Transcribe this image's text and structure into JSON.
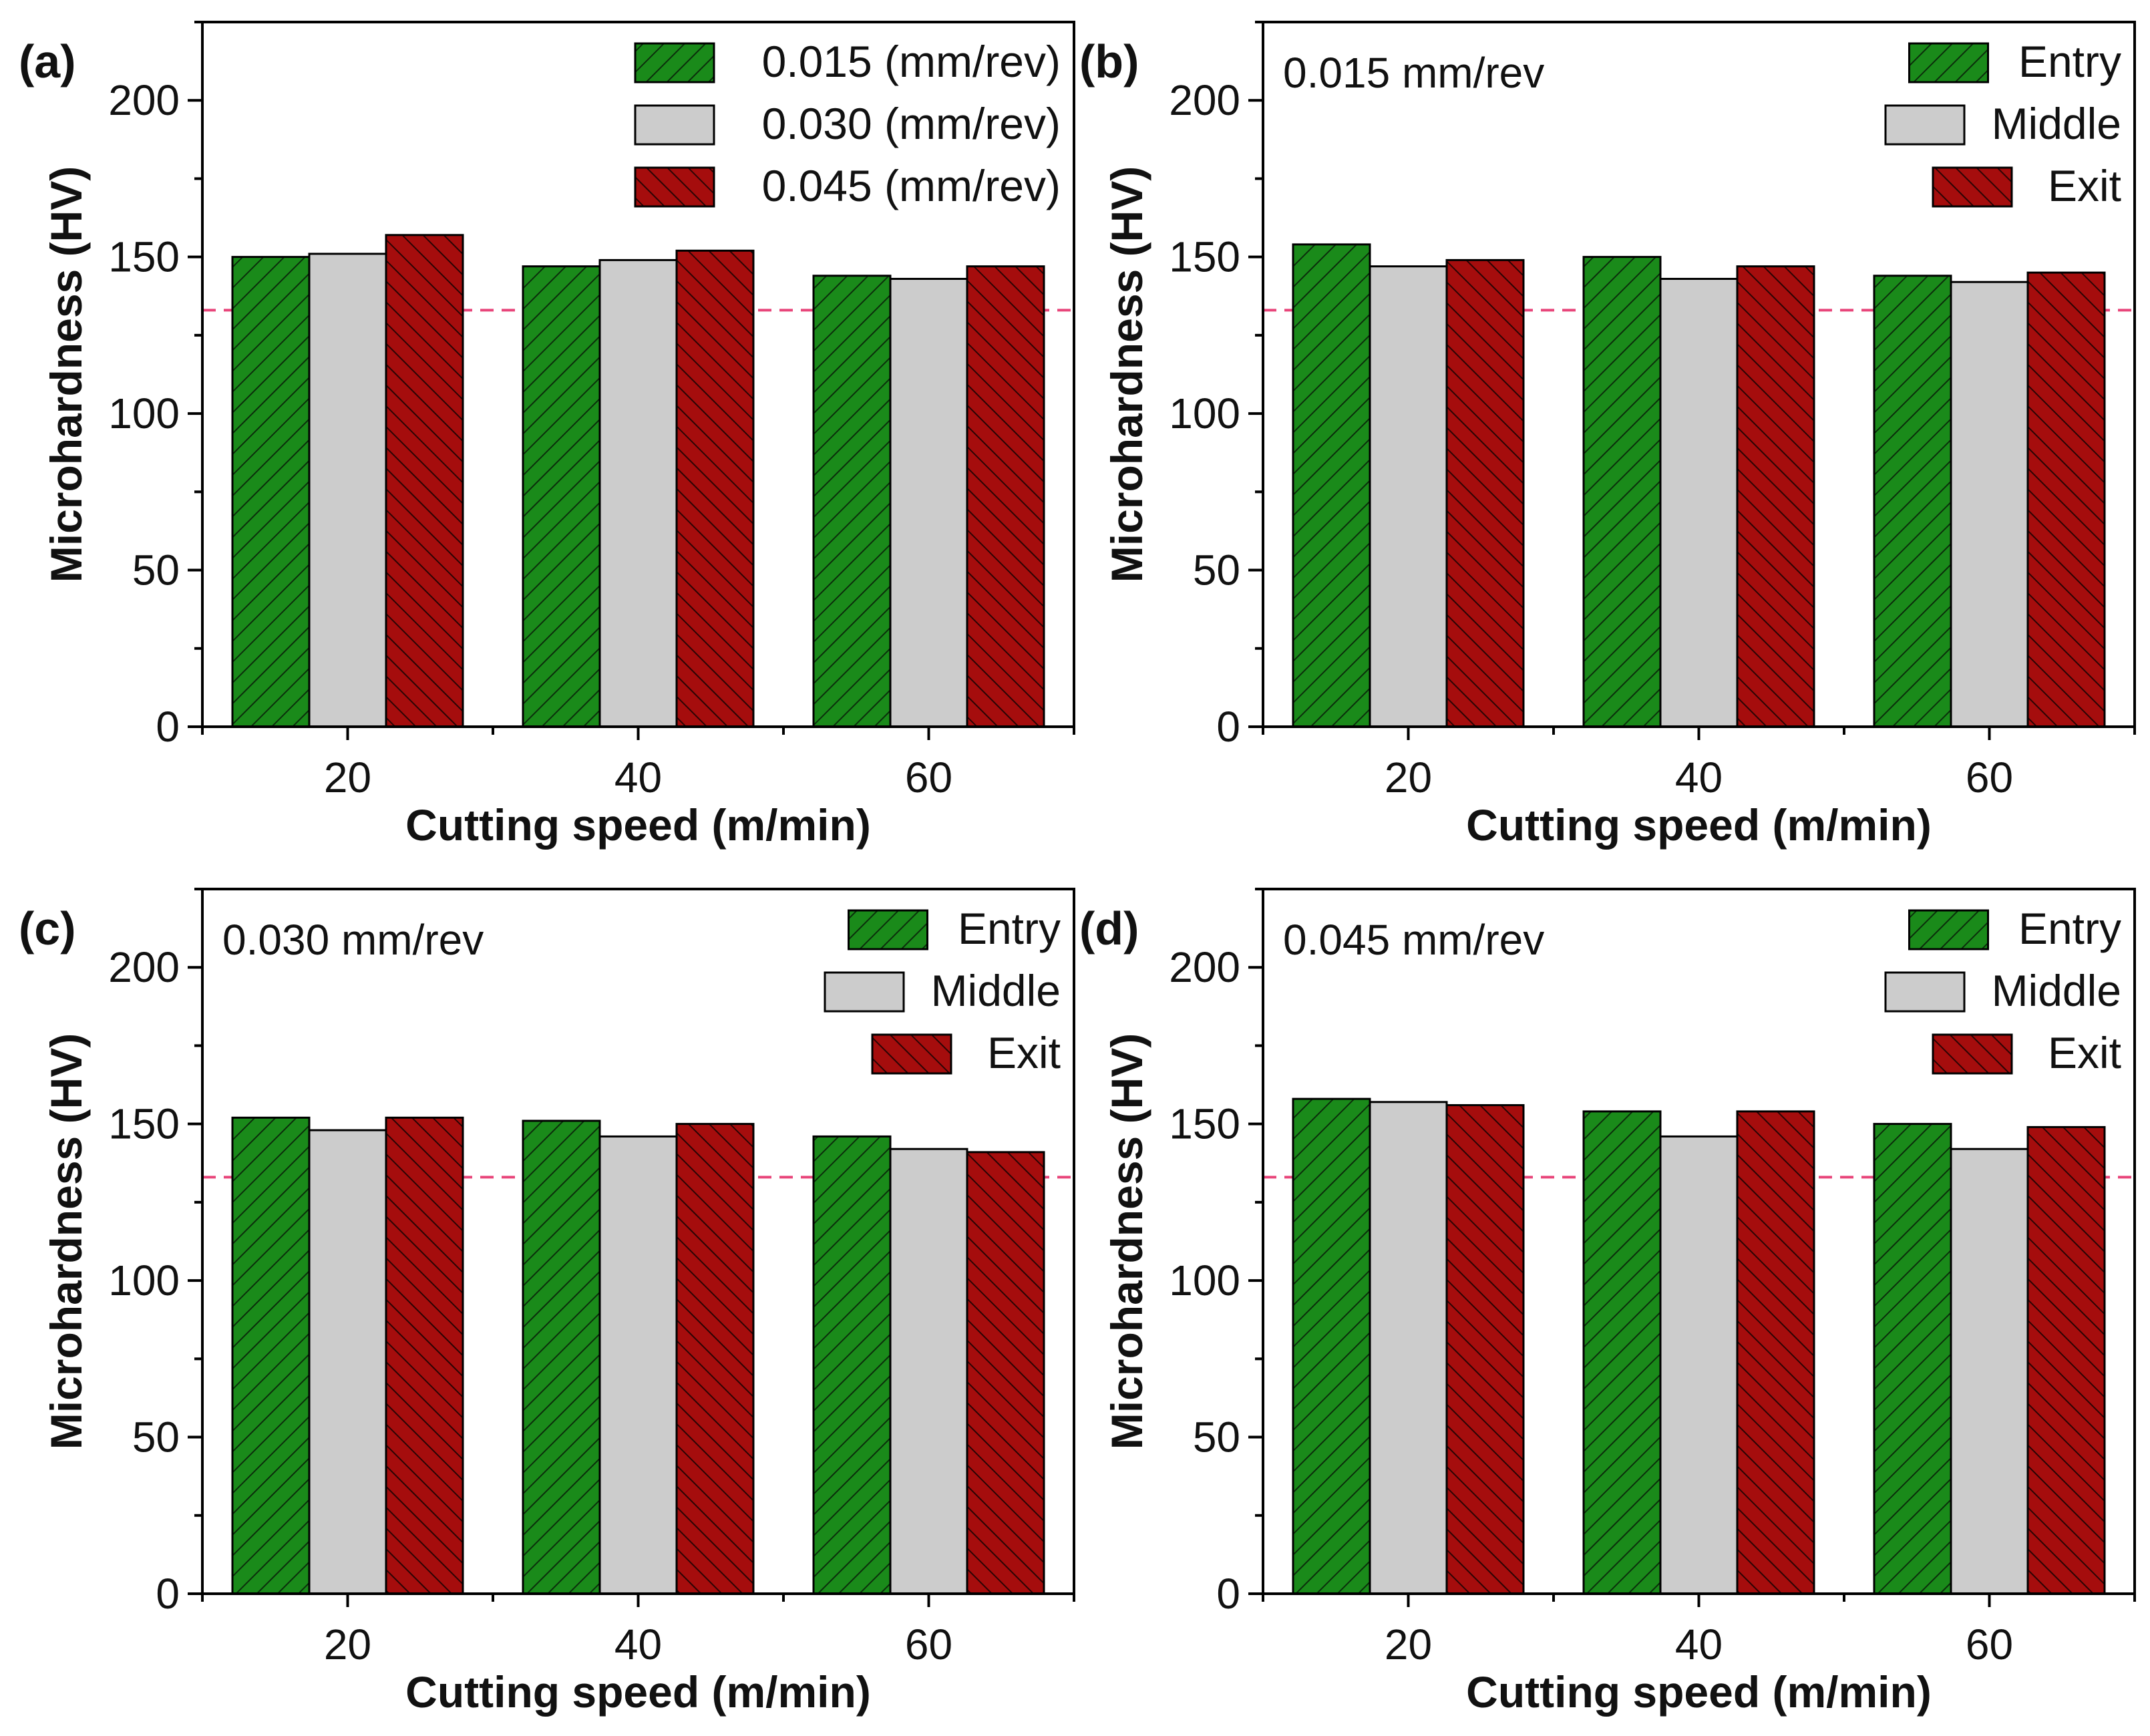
{
  "figure": {
    "colors": {
      "entry_green": "#1a8a1a",
      "middle_gray": "#cccccc",
      "exit_red": "#a50d0d",
      "reference_line": "#e8457a",
      "axis": "#000000"
    },
    "reference_value": 133
  },
  "chart_data": [
    {
      "type": "bar",
      "panel": "(a)",
      "annotation": "",
      "categories": [
        "20",
        "40",
        "60"
      ],
      "series": [
        {
          "name": "0.015 (mm/rev)",
          "pattern": "green-hatch",
          "values": [
            150,
            147,
            144
          ]
        },
        {
          "name": "0.030 (mm/rev)",
          "pattern": "gray",
          "values": [
            151,
            149,
            143
          ]
        },
        {
          "name": "0.045 (mm/rev)",
          "pattern": "red-hatch",
          "values": [
            157,
            152,
            147
          ]
        }
      ],
      "xlabel": "Cutting speed (m/min)",
      "ylabel": "Microhardness (HV)",
      "ylim": [
        0,
        225
      ],
      "yticks": [
        "0",
        "50",
        "100",
        "150",
        "200"
      ],
      "reference_line": 133,
      "legend": "top-right"
    },
    {
      "type": "bar",
      "panel": "(b)",
      "annotation": "0.015 mm/rev",
      "categories": [
        "20",
        "40",
        "60"
      ],
      "series": [
        {
          "name": "Entry",
          "pattern": "green-hatch",
          "values": [
            154,
            150,
            144
          ]
        },
        {
          "name": "Middle",
          "pattern": "gray",
          "values": [
            147,
            143,
            142
          ]
        },
        {
          "name": "Exit",
          "pattern": "red-hatch",
          "values": [
            149,
            147,
            145
          ]
        }
      ],
      "xlabel": "Cutting speed (m/min)",
      "ylabel": "Microhardness (HV)",
      "ylim": [
        0,
        225
      ],
      "yticks": [
        "0",
        "50",
        "100",
        "150",
        "200"
      ],
      "reference_line": 133,
      "legend": "top-right"
    },
    {
      "type": "bar",
      "panel": "(c)",
      "annotation": "0.030 mm/rev",
      "categories": [
        "20",
        "40",
        "60"
      ],
      "series": [
        {
          "name": "Entry",
          "pattern": "green-hatch",
          "values": [
            152,
            151,
            146
          ]
        },
        {
          "name": "Middle",
          "pattern": "gray",
          "values": [
            148,
            146,
            142
          ]
        },
        {
          "name": "Exit",
          "pattern": "red-hatch",
          "values": [
            152,
            150,
            141
          ]
        }
      ],
      "xlabel": "Cutting speed (m/min)",
      "ylabel": "Microhardness (HV)",
      "ylim": [
        0,
        225
      ],
      "yticks": [
        "0",
        "50",
        "100",
        "150",
        "200"
      ],
      "reference_line": 133,
      "legend": "top-right"
    },
    {
      "type": "bar",
      "panel": "(d)",
      "annotation": "0.045 mm/rev",
      "categories": [
        "20",
        "40",
        "60"
      ],
      "series": [
        {
          "name": "Entry",
          "pattern": "green-hatch",
          "values": [
            158,
            154,
            150
          ]
        },
        {
          "name": "Middle",
          "pattern": "gray",
          "values": [
            157,
            146,
            142
          ]
        },
        {
          "name": "Exit",
          "pattern": "red-hatch",
          "values": [
            156,
            154,
            149
          ]
        }
      ],
      "xlabel": "Cutting speed (m/min)",
      "ylabel": "Microhardness (HV)",
      "ylim": [
        0,
        225
      ],
      "yticks": [
        "0",
        "50",
        "100",
        "150",
        "200"
      ],
      "reference_line": 133,
      "legend": "top-right"
    }
  ]
}
